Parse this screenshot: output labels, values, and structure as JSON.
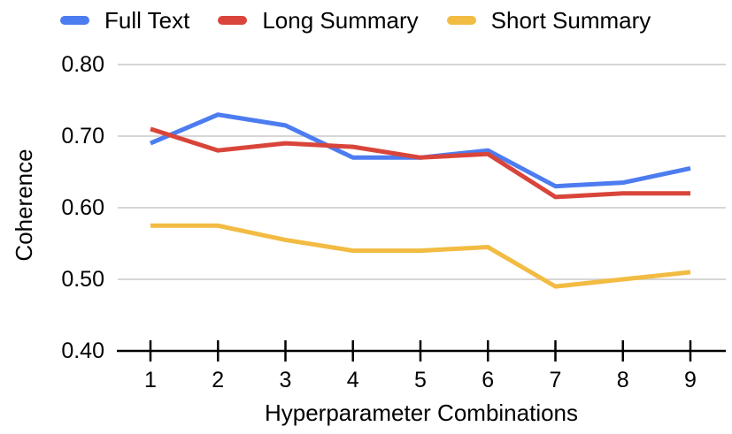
{
  "chart_data": {
    "type": "line",
    "title": "",
    "xlabel": "Hyperparameter Combinations",
    "ylabel": "Coherence",
    "x": [
      1,
      2,
      3,
      4,
      5,
      6,
      7,
      8,
      9
    ],
    "series": [
      {
        "name": "Full Text",
        "color": "#4D7CF0",
        "values": [
          0.69,
          0.73,
          0.715,
          0.67,
          0.67,
          0.68,
          0.63,
          0.635,
          0.655
        ]
      },
      {
        "name": "Long Summary",
        "color": "#D9453B",
        "values": [
          0.71,
          0.68,
          0.69,
          0.685,
          0.67,
          0.675,
          0.615,
          0.62,
          0.62
        ]
      },
      {
        "name": "Short Summary",
        "color": "#F2BB42",
        "values": [
          0.575,
          0.575,
          0.555,
          0.54,
          0.54,
          0.545,
          0.49,
          0.5,
          0.51
        ]
      }
    ],
    "ylim": [
      0.4,
      0.8
    ],
    "yticks": [
      "0.80",
      "0.70",
      "0.60",
      "0.50",
      "0.40"
    ],
    "ytick_values": [
      0.8,
      0.7,
      0.6,
      0.5,
      0.4
    ],
    "grid": "horizontal",
    "legend_position": "top",
    "gridline_color": "#D6D6D6",
    "axis_color": "#000000",
    "text_color": "#000000"
  }
}
